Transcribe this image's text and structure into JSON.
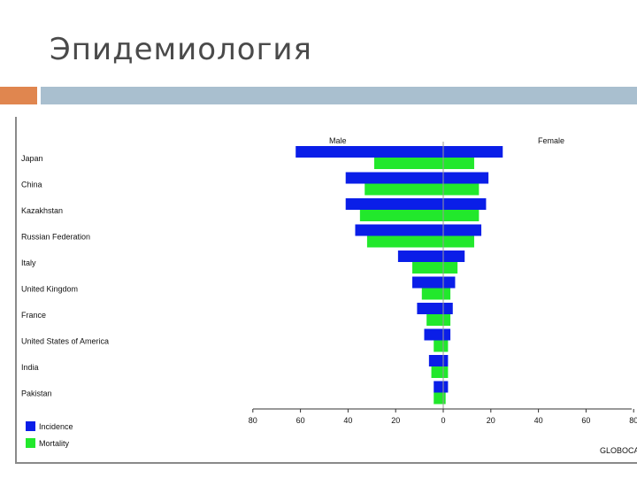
{
  "slide": {
    "title": "Эпидемиология",
    "accent_color": "#e0864f",
    "bar_color": "#a9bfcf"
  },
  "chart_data": {
    "type": "bar",
    "orientation": "horizontal-butterfly",
    "categories": [
      "Japan",
      "China",
      "Kazakhstan",
      "Russian Federation",
      "Italy",
      "United Kingdom",
      "France",
      "United States of America",
      "India",
      "Pakistan"
    ],
    "groups": [
      "Male",
      "Female"
    ],
    "series": [
      {
        "name": "Incidence",
        "color": "#0a1ee8",
        "male": [
          62,
          41,
          41,
          37,
          19,
          13,
          11,
          8,
          6,
          4
        ],
        "female": [
          25,
          19,
          18,
          16,
          9,
          5,
          4,
          3,
          2,
          2
        ]
      },
      {
        "name": "Mortality",
        "color": "#22e82c",
        "male": [
          29,
          33,
          35,
          32,
          13,
          9,
          7,
          4,
          5,
          4
        ],
        "female": [
          13,
          15,
          15,
          13,
          6,
          3,
          3,
          2,
          2,
          1
        ]
      }
    ],
    "xticks": [
      "80",
      "60",
      "40",
      "20",
      "0",
      "20",
      "40",
      "60",
      "80"
    ],
    "xlim": [
      -80,
      80
    ],
    "legend_position": "bottom-left",
    "source": "GLOBOCAN"
  }
}
